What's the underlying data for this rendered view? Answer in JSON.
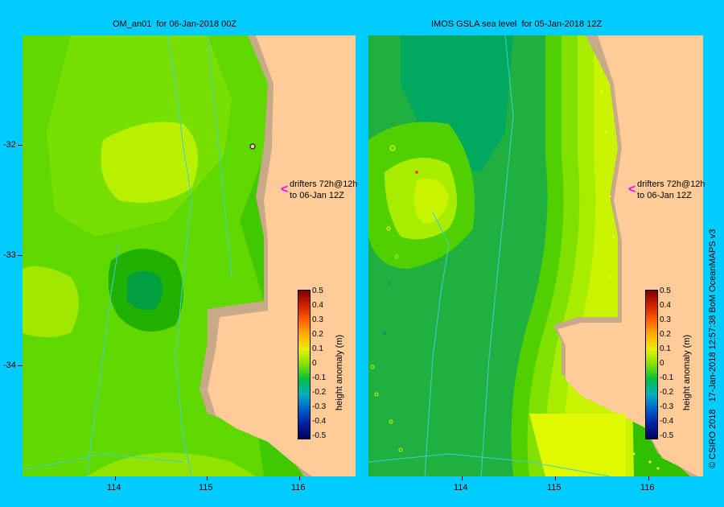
{
  "left_map": {
    "title": "OM_an01  for 06-Jan-2018 00Z",
    "annotation_line1": "drifters 72h@12h",
    "annotation_line2": "to 06-Jan 12Z",
    "arrow": "<"
  },
  "right_map": {
    "title": "IMOS GSLA sea level  for 05-Jan-2018 12Z",
    "annotation_line1": "drifters 72h@12h",
    "annotation_line2": "to 06-Jan 12Z",
    "arrow": "<"
  },
  "y_axis": {
    "ticks": [
      "-32",
      "-33",
      "-34"
    ]
  },
  "x_axis": {
    "ticks": [
      "114",
      "115",
      "116"
    ]
  },
  "colorbar": {
    "title": "height anomaly (m)",
    "labels": [
      "0.5",
      "0.4",
      "0.3",
      "0.2",
      "0.1",
      "0",
      "-0.1",
      "-0.2",
      "-0.3",
      "-0.4",
      "-0.5"
    ]
  },
  "credit": "© CSIRO 2018   17-Jan-2018 12:57:38 BoM OceanMAPS v3",
  "colors": {
    "background": "#00ccff",
    "land": "#ffcc99",
    "shelf": "#c8aa88",
    "drifter_arrow": "#ff00ff"
  }
}
